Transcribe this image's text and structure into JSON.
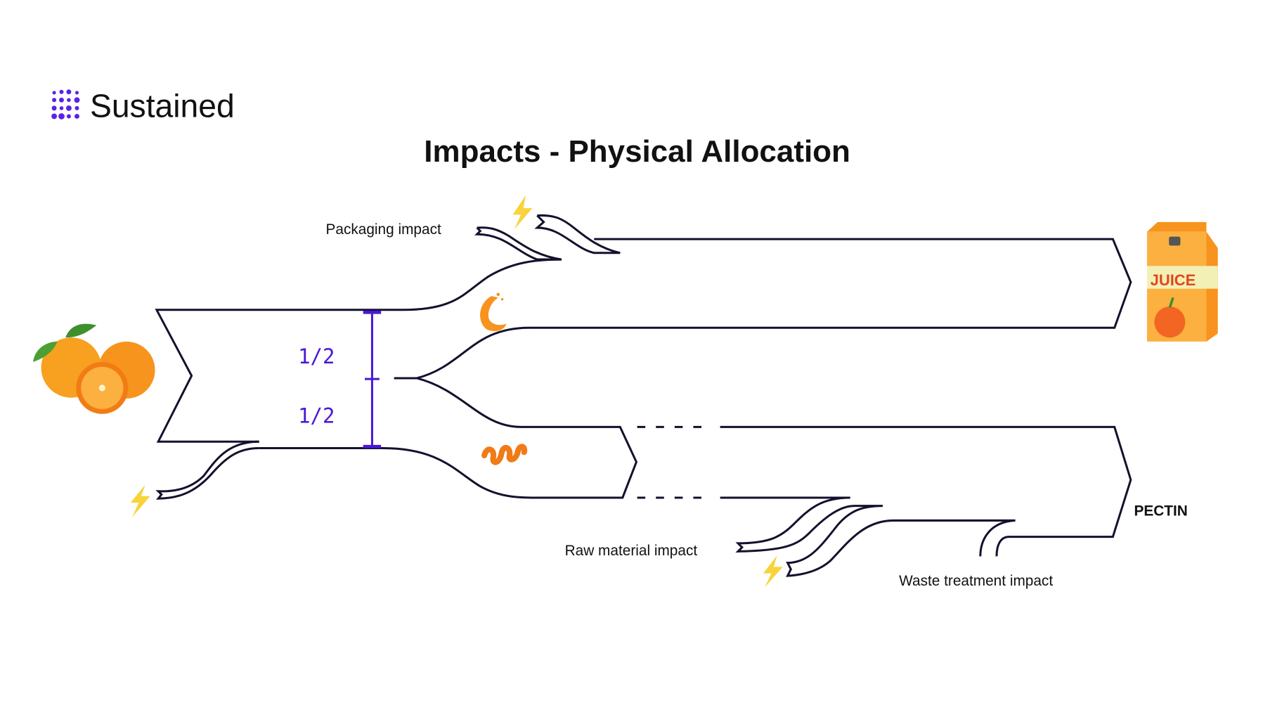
{
  "brand": {
    "name": "Sustained",
    "logo_color": "#5b21e6"
  },
  "title": "Impacts - Physical Allocation",
  "labels": {
    "packaging": "Packaging impact",
    "raw_material": "Raw material impact",
    "waste": "Waste treatment impact",
    "pectin": "PECTIN"
  },
  "allocation": {
    "upper": "1/2",
    "lower": "1/2",
    "color": "#4a17d6"
  },
  "juice_carton": {
    "label": "JUICE"
  },
  "icons": [
    "oranges-image",
    "juice-carton-image",
    "juice-splash-icon",
    "orange-peel-icon",
    "lightning-icon"
  ],
  "colors": {
    "flow": "#14112e",
    "energy": "#f7d33c",
    "orange": "#f7931e"
  }
}
